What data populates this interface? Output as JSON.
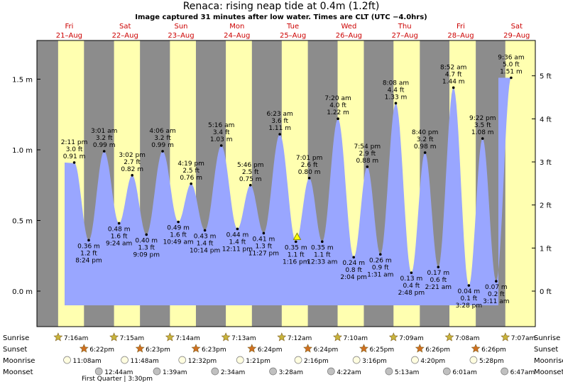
{
  "chart_data": {
    "type": "area",
    "title": "Renaca: rising  neap tide at 0.4m (1.2ft)",
    "subtitle": "Image captured 31 minutes after low water. Times are CLT (UTC −4.0hrs)",
    "y_left_ticks": [
      "0.0 m",
      "0.5 m",
      "1.0 m",
      "1.5 m"
    ],
    "y_right_ticks": [
      "0 ft",
      "1 ft",
      "2 ft",
      "3 ft",
      "4 ft",
      "5 ft"
    ],
    "ylim_m": [
      -0.23,
      1.75
    ],
    "days": [
      {
        "dow": "Fri",
        "date": "21–Aug"
      },
      {
        "dow": "Sat",
        "date": "22–Aug"
      },
      {
        "dow": "Sun",
        "date": "23–Aug"
      },
      {
        "dow": "Mon",
        "date": "24–Aug"
      },
      {
        "dow": "Tue",
        "date": "25–Aug"
      },
      {
        "dow": "Wed",
        "date": "26–Aug"
      },
      {
        "dow": "Thu",
        "date": "27–Aug"
      },
      {
        "dow": "Fri",
        "date": "28–Aug"
      },
      {
        "dow": "Sat",
        "date": "29–Aug"
      }
    ],
    "tides": [
      {
        "day": 0,
        "time": "2:11 pm",
        "ft": "3.0 ft",
        "m": 0.91,
        "label_m": "0.91 m",
        "type": "high"
      },
      {
        "day": 0,
        "time": "8:24 pm",
        "ft": "1.2 ft",
        "m": 0.36,
        "label_m": "0.36 m",
        "type": "low"
      },
      {
        "day": 1,
        "time": "3:01 am",
        "ft": "3.2 ft",
        "m": 0.99,
        "label_m": "0.99 m",
        "type": "high"
      },
      {
        "day": 1,
        "time": "9:24 am",
        "ft": "1.6 ft",
        "m": 0.48,
        "label_m": "0.48 m",
        "type": "low"
      },
      {
        "day": 1,
        "time": "3:02 pm",
        "ft": "2.7 ft",
        "m": 0.82,
        "label_m": "0.82 m",
        "type": "high"
      },
      {
        "day": 1,
        "time": "9:09 pm",
        "ft": "1.3 ft",
        "m": 0.4,
        "label_m": "0.40 m",
        "type": "low"
      },
      {
        "day": 2,
        "time": "4:06 am",
        "ft": "3.2 ft",
        "m": 0.99,
        "label_m": "0.99 m",
        "type": "high"
      },
      {
        "day": 2,
        "time": "10:49 am",
        "ft": "1.6 ft",
        "m": 0.49,
        "label_m": "0.49 m",
        "type": "low"
      },
      {
        "day": 2,
        "time": "4:19 pm",
        "ft": "2.5 ft",
        "m": 0.76,
        "label_m": "0.76 m",
        "type": "high"
      },
      {
        "day": 2,
        "time": "10:14 pm",
        "ft": "1.4 ft",
        "m": 0.43,
        "label_m": "0.43 m",
        "type": "low"
      },
      {
        "day": 3,
        "time": "5:16 am",
        "ft": "3.4 ft",
        "m": 1.03,
        "label_m": "1.03 m",
        "type": "high"
      },
      {
        "day": 3,
        "time": "12:11 pm",
        "ft": "1.4 ft",
        "m": 0.44,
        "label_m": "0.44 m",
        "type": "low"
      },
      {
        "day": 3,
        "time": "5:46 pm",
        "ft": "2.5 ft",
        "m": 0.75,
        "label_m": "0.75 m",
        "type": "high"
      },
      {
        "day": 3,
        "time": "11:27 pm",
        "ft": "1.3 ft",
        "m": 0.41,
        "label_m": "0.41 m",
        "type": "low"
      },
      {
        "day": 4,
        "time": "6:23 am",
        "ft": "3.6 ft",
        "m": 1.11,
        "label_m": "1.11 m",
        "type": "high"
      },
      {
        "day": 4,
        "time": "1:16 pm",
        "ft": "1.1 ft",
        "m": 0.35,
        "label_m": "0.35 m",
        "type": "low"
      },
      {
        "day": 4,
        "time": "7:01 pm",
        "ft": "2.6 ft",
        "m": 0.8,
        "label_m": "0.80 m",
        "type": "high"
      },
      {
        "day": 5,
        "time": "12:33 am",
        "ft": "1.1 ft",
        "m": 0.35,
        "label_m": "0.35 m",
        "type": "low"
      },
      {
        "day": 5,
        "time": "7:20 am",
        "ft": "4.0 ft",
        "m": 1.22,
        "label_m": "1.22 m",
        "type": "high"
      },
      {
        "day": 5,
        "time": "2:04 pm",
        "ft": "0.8 ft",
        "m": 0.24,
        "label_m": "0.24 m",
        "type": "low"
      },
      {
        "day": 5,
        "time": "7:54 pm",
        "ft": "2.9 ft",
        "m": 0.88,
        "label_m": "0.88 m",
        "type": "high"
      },
      {
        "day": 6,
        "time": "1:31 am",
        "ft": "0.9 ft",
        "m": 0.26,
        "label_m": "0.26 m",
        "type": "low"
      },
      {
        "day": 6,
        "time": "8:08 am",
        "ft": "4.4 ft",
        "m": 1.33,
        "label_m": "1.33 m",
        "type": "high"
      },
      {
        "day": 6,
        "time": "2:48 pm",
        "ft": "0.4 ft",
        "m": 0.13,
        "label_m": "0.13 m",
        "type": "low"
      },
      {
        "day": 6,
        "time": "8:40 pm",
        "ft": "3.2 ft",
        "m": 0.98,
        "label_m": "0.98 m",
        "type": "high"
      },
      {
        "day": 7,
        "time": "2:21 am",
        "ft": "0.6 ft",
        "m": 0.17,
        "label_m": "0.17 m",
        "type": "low"
      },
      {
        "day": 7,
        "time": "8:52 am",
        "ft": "4.7 ft",
        "m": 1.44,
        "label_m": "1.44 m",
        "type": "high"
      },
      {
        "day": 7,
        "time": "3:28 pm",
        "ft": "0.1 ft",
        "m": 0.04,
        "label_m": "0.04 m",
        "type": "low"
      },
      {
        "day": 7,
        "time": "9:22 pm",
        "ft": "3.5 ft",
        "m": 1.08,
        "label_m": "1.08 m",
        "type": "high"
      },
      {
        "day": 8,
        "time": "3:11 am",
        "ft": "0.2 ft",
        "m": 0.07,
        "label_m": "0.07 m",
        "type": "low"
      },
      {
        "day": 8,
        "time": "9:36 am",
        "ft": "5.0 ft",
        "m": 1.51,
        "label_m": "1.51 m",
        "type": "high"
      }
    ],
    "current": {
      "day": 4,
      "time": "1:47 pm",
      "m": 0.38
    },
    "sunrise": [
      "7:16am",
      "7:15am",
      "7:14am",
      "7:13am",
      "7:12am",
      "7:10am",
      "7:09am",
      "7:08am",
      "7:07am"
    ],
    "sunset": [
      "6:22pm",
      "6:23pm",
      "6:23pm",
      "6:24pm",
      "6:24pm",
      "6:25pm",
      "6:26pm",
      "6:26pm"
    ],
    "moonrise": [
      "11:08am",
      "11:48am",
      "12:32pm",
      "1:21pm",
      "2:16pm",
      "3:16pm",
      "4:20pm",
      "5:28pm"
    ],
    "moonset": [
      "12:44am",
      "1:39am",
      "2:34am",
      "3:28am",
      "4:22am",
      "5:13am",
      "6:01am",
      "6:47am"
    ],
    "row_labels": {
      "sunrise": "Sunrise",
      "sunset": "Sunset",
      "moonrise": "Moonrise",
      "moonset": "Moonset"
    },
    "phase_note": "First Quarter | 3:30pm",
    "colors": {
      "night": "#8c8c8c",
      "day": "#ffffb0",
      "water": "#99a6ff",
      "day_text": "#cc0000"
    }
  }
}
